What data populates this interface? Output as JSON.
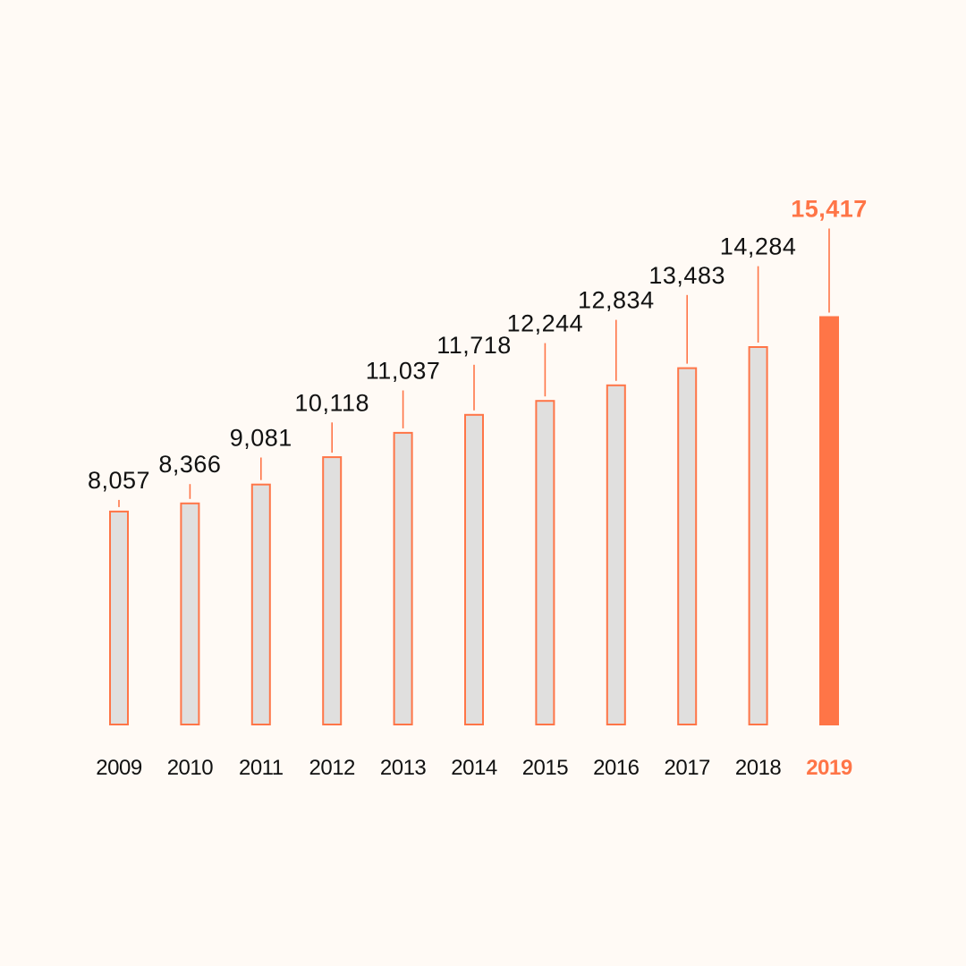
{
  "chart_data": {
    "type": "bar",
    "categories": [
      "2009",
      "2010",
      "2011",
      "2012",
      "2013",
      "2014",
      "2015",
      "2016",
      "2017",
      "2018",
      "2019"
    ],
    "values": [
      8057,
      8366,
      9081,
      10118,
      11037,
      11718,
      12244,
      12834,
      13483,
      14284,
      15417
    ],
    "value_labels": [
      "8,057",
      "8,366",
      "9,081",
      "10,118",
      "11,037",
      "11,718",
      "12,244",
      "12,834",
      "13,483",
      "14,284",
      "15,417"
    ],
    "highlight_category": "2019",
    "title": "",
    "xlabel": "",
    "ylabel": "",
    "grid": false,
    "colors": {
      "background": "#fffaf5",
      "bar_fill": "#e0dfde",
      "bar_outline": "#ff7547",
      "highlight": "#ff7547",
      "text": "#111111"
    }
  }
}
